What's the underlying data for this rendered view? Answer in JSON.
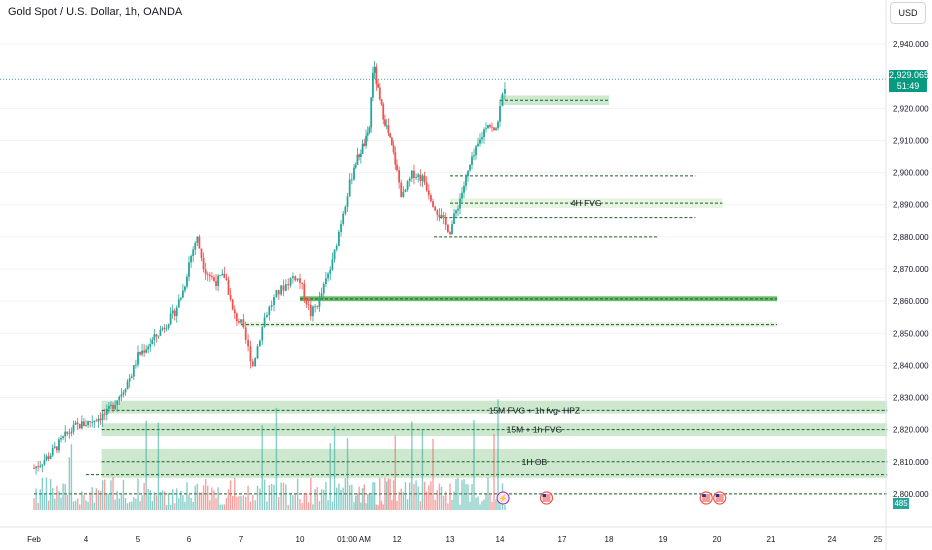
{
  "header": {
    "title": "Gold Spot / U.S. Dollar, 1h, OANDA",
    "currency": "USD"
  },
  "price_tag": {
    "price": "2,929.065",
    "countdown": "51:49"
  },
  "volume_tag": "485",
  "colors": {
    "up": "#26a69a",
    "down": "#ef5350",
    "zone_fill": "#c8e6c9",
    "zone_fill_light": "#e3f2dd",
    "zone_fill_dark": "#4caf50",
    "dash": "#1b5e20",
    "price_line": "#089981"
  },
  "chart_data": {
    "type": "candlestick",
    "title": "Gold Spot / U.S. Dollar, 1h, OANDA",
    "ylim": [
      2795,
      2945
    ],
    "y_ticks": [
      "2,800.000",
      "2,810.000",
      "2,820.000",
      "2,830.000",
      "2,840.000",
      "2,850.000",
      "2,860.000",
      "2,870.000",
      "2,880.000",
      "2,890.000",
      "2,900.000",
      "2,910.000",
      "2,920.000",
      "2,930.000",
      "2,940.000"
    ],
    "y_tick_values": [
      2800,
      2810,
      2820,
      2830,
      2840,
      2850,
      2860,
      2870,
      2880,
      2890,
      2900,
      2910,
      2920,
      2930,
      2940
    ],
    "x_ticks": [
      "Feb",
      "4",
      "5",
      "6",
      "7",
      "10",
      "01:00 AM",
      "12",
      "13",
      "14",
      "17",
      "18",
      "19",
      "20",
      "21",
      "24",
      "25"
    ],
    "x_tick_positions": [
      0,
      1,
      2,
      3,
      4,
      5,
      6,
      7,
      8,
      9,
      10,
      11,
      12,
      13,
      14,
      15,
      16
    ],
    "last_price": 2929.065,
    "price_path": [
      {
        "t": 0.0,
        "p": 2808
      },
      {
        "t": 0.3,
        "p": 2812
      },
      {
        "t": 0.6,
        "p": 2818
      },
      {
        "t": 0.8,
        "p": 2821
      },
      {
        "t": 1.0,
        "p": 2822
      },
      {
        "t": 1.4,
        "p": 2825
      },
      {
        "t": 1.7,
        "p": 2832
      },
      {
        "t": 1.9,
        "p": 2838
      },
      {
        "t": 2.0,
        "p": 2843
      },
      {
        "t": 2.3,
        "p": 2848
      },
      {
        "t": 2.7,
        "p": 2856
      },
      {
        "t": 2.9,
        "p": 2864
      },
      {
        "t": 3.0,
        "p": 2872
      },
      {
        "t": 3.15,
        "p": 2880
      },
      {
        "t": 3.3,
        "p": 2870
      },
      {
        "t": 3.5,
        "p": 2866
      },
      {
        "t": 3.7,
        "p": 2868
      },
      {
        "t": 3.85,
        "p": 2856
      },
      {
        "t": 4.0,
        "p": 2853
      },
      {
        "t": 4.2,
        "p": 2840
      },
      {
        "t": 4.4,
        "p": 2855
      },
      {
        "t": 4.6,
        "p": 2862
      },
      {
        "t": 4.9,
        "p": 2868
      },
      {
        "t": 5.0,
        "p": 2866
      },
      {
        "t": 5.2,
        "p": 2856
      },
      {
        "t": 5.35,
        "p": 2860
      },
      {
        "t": 5.6,
        "p": 2872
      },
      {
        "t": 5.8,
        "p": 2888
      },
      {
        "t": 6.0,
        "p": 2902
      },
      {
        "t": 6.2,
        "p": 2908
      },
      {
        "t": 6.35,
        "p": 2912
      },
      {
        "t": 6.45,
        "p": 2934
      },
      {
        "t": 6.6,
        "p": 2922
      },
      {
        "t": 6.8,
        "p": 2912
      },
      {
        "t": 6.95,
        "p": 2904
      },
      {
        "t": 7.1,
        "p": 2892
      },
      {
        "t": 7.3,
        "p": 2900
      },
      {
        "t": 7.5,
        "p": 2898
      },
      {
        "t": 7.7,
        "p": 2890
      },
      {
        "t": 7.9,
        "p": 2884
      },
      {
        "t": 8.0,
        "p": 2882
      },
      {
        "t": 8.2,
        "p": 2892
      },
      {
        "t": 8.4,
        "p": 2902
      },
      {
        "t": 8.6,
        "p": 2910
      },
      {
        "t": 8.75,
        "p": 2916
      },
      {
        "t": 8.9,
        "p": 2912
      },
      {
        "t": 9.0,
        "p": 2920
      },
      {
        "t": 9.1,
        "p": 2929
      }
    ],
    "volume_ylim": [
      0,
      100
    ],
    "annotations": [
      {
        "label": "",
        "x_start": 9.0,
        "x_end": 11.0,
        "y_low": 2921,
        "y_high": 2924,
        "dash_y": 2922.5,
        "style": "zone"
      },
      {
        "label": "",
        "x_start": 8.0,
        "x_end": 12.6,
        "dash_y": 2899,
        "style": "line"
      },
      {
        "label": "4H FVG",
        "x_start": 8.0,
        "x_end": 13.1,
        "y_low": 2889,
        "y_high": 2892,
        "dash_y": 2890.5,
        "style": "zone_light"
      },
      {
        "label": "",
        "x_start": 7.8,
        "x_end": 12.6,
        "dash_y": 2886,
        "style": "line"
      },
      {
        "label": "",
        "x_start": 7.7,
        "x_end": 11.9,
        "dash_y": 2880,
        "style": "line"
      },
      {
        "label": "",
        "x_start": 5.0,
        "x_end": 14.1,
        "y_low": 2860,
        "y_high": 2861.5,
        "dash_y": 2860.7,
        "style": "zone_dark"
      },
      {
        "label": "",
        "x_start": 4.0,
        "x_end": 14.1,
        "y_low": 2852,
        "y_high": 2853.5,
        "dash_y": 2852.7,
        "style": "zone_light"
      },
      {
        "label": "15M FVG + 1h fvg- HPZ",
        "x_start": 1.3,
        "x_end": 16.2,
        "y_low": 2825,
        "y_high": 2829,
        "dash_y": 2826,
        "style": "zone"
      },
      {
        "label": "15M + 1h FVG",
        "x_start": 1.3,
        "x_end": 16.2,
        "y_low": 2818,
        "y_high": 2822,
        "dash_y": 2820,
        "style": "zone"
      },
      {
        "label": "1H OB",
        "x_start": 1.3,
        "x_end": 16.2,
        "y_low": 2805,
        "y_high": 2814,
        "dash_y": 2810,
        "style": "zone"
      },
      {
        "label": "",
        "x_start": 1.0,
        "x_end": 16.2,
        "dash_y": 2806,
        "style": "line"
      },
      {
        "label": "",
        "x_start": 0.0,
        "x_end": 16.2,
        "dash_y": 2800,
        "style": "line"
      }
    ],
    "event_markers": [
      {
        "name": "lightning-icon",
        "x": 9.05
      },
      {
        "name": "us-flag-icon",
        "x": 9.75
      },
      {
        "name": "us-flag-icon",
        "x": 12.8
      },
      {
        "name": "us-flag-icon",
        "x": 13.05
      }
    ]
  }
}
